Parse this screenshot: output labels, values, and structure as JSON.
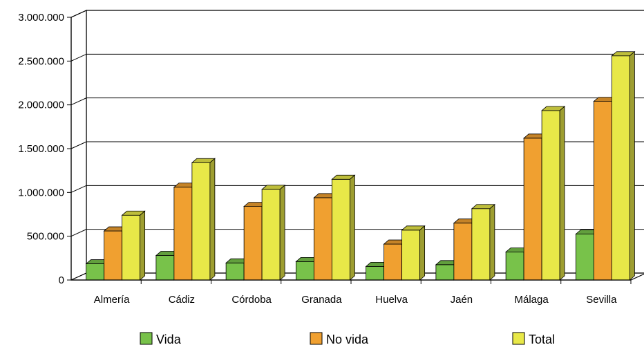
{
  "chart_data": {
    "type": "bar",
    "categories": [
      "Almería",
      "Cádiz",
      "Córdoba",
      "Granada",
      "Huelva",
      "Jaén",
      "Málaga",
      "Sevilla"
    ],
    "series": [
      {
        "name": "Vida",
        "color": "#78c24a",
        "values": [
          185000,
          280000,
          195000,
          210000,
          155000,
          175000,
          320000,
          525000
        ]
      },
      {
        "name": "No vida",
        "color": "#f0a030",
        "values": [
          560000,
          1060000,
          840000,
          940000,
          410000,
          650000,
          1620000,
          2040000
        ]
      },
      {
        "name": "Total",
        "color": "#e8e848",
        "values": [
          740000,
          1340000,
          1035000,
          1150000,
          570000,
          815000,
          1935000,
          2560000
        ]
      }
    ],
    "yticks": [
      "0",
      "500.000",
      "1.000.000",
      "1.500.000",
      "2.000.000",
      "2.500.000",
      "3.000.000"
    ],
    "ylim": [
      0,
      3000000
    ],
    "grid": true,
    "legend_position": "bottom",
    "style": "3d-column"
  }
}
